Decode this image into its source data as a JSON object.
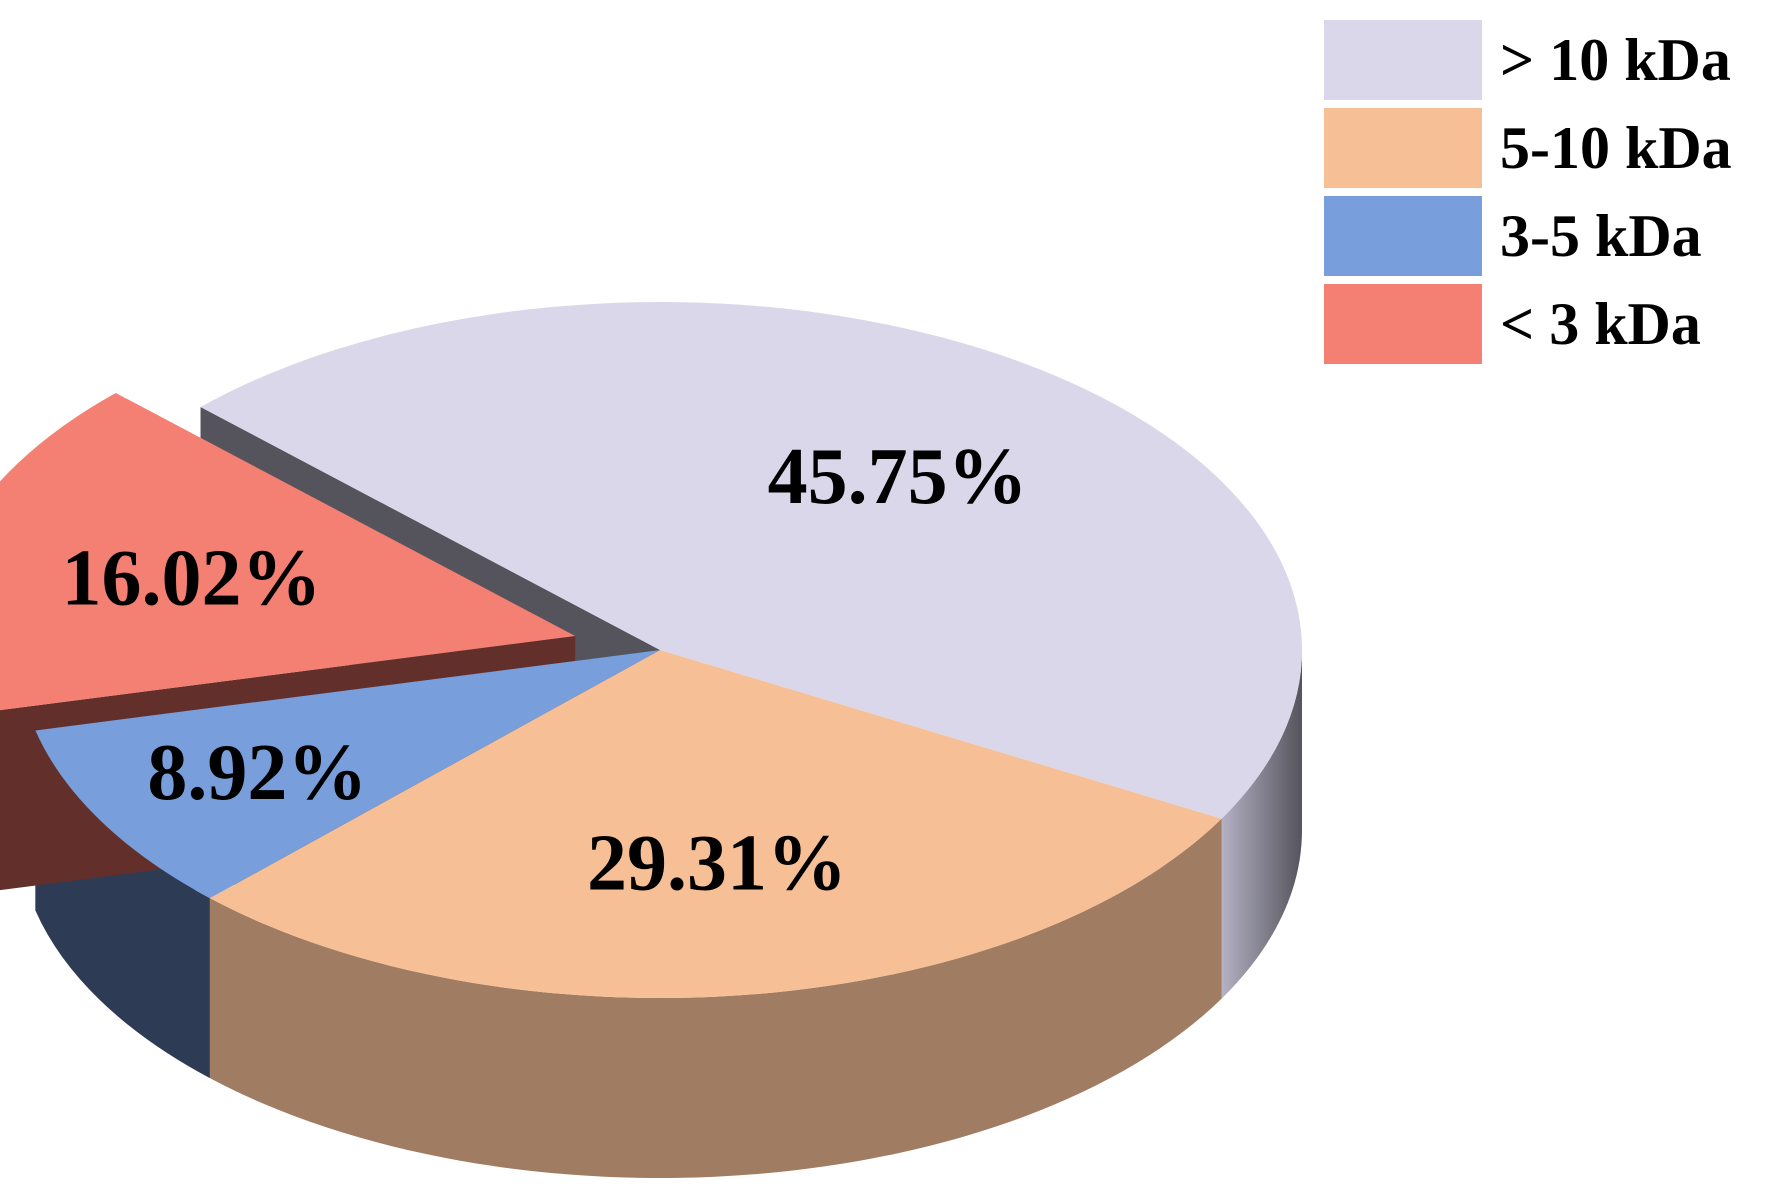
{
  "chart_data": {
    "type": "pie",
    "style": "3d-exploded",
    "exploded_slice": "< 3 kDa",
    "legend_position": "top-right",
    "slices": [
      {
        "label": "> 10 kDa",
        "value": 45.75,
        "value_label": "45.75%",
        "color": "#DAD7EA",
        "side_color": "#8E8C9A"
      },
      {
        "label": "5-10 kDa",
        "value": 29.31,
        "value_label": "29.31%",
        "color": "#F7BF95",
        "side_color": "#A07C62"
      },
      {
        "label": "3-5 kDa",
        "value": 8.92,
        "value_label": "8.92%",
        "color": "#789EDB",
        "side_color": "#2E3B55"
      },
      {
        "label": "< 3 kDa",
        "value": 16.02,
        "value_label": "16.02%",
        "color": "#F47F73",
        "side_color": "#622F2B"
      }
    ]
  }
}
